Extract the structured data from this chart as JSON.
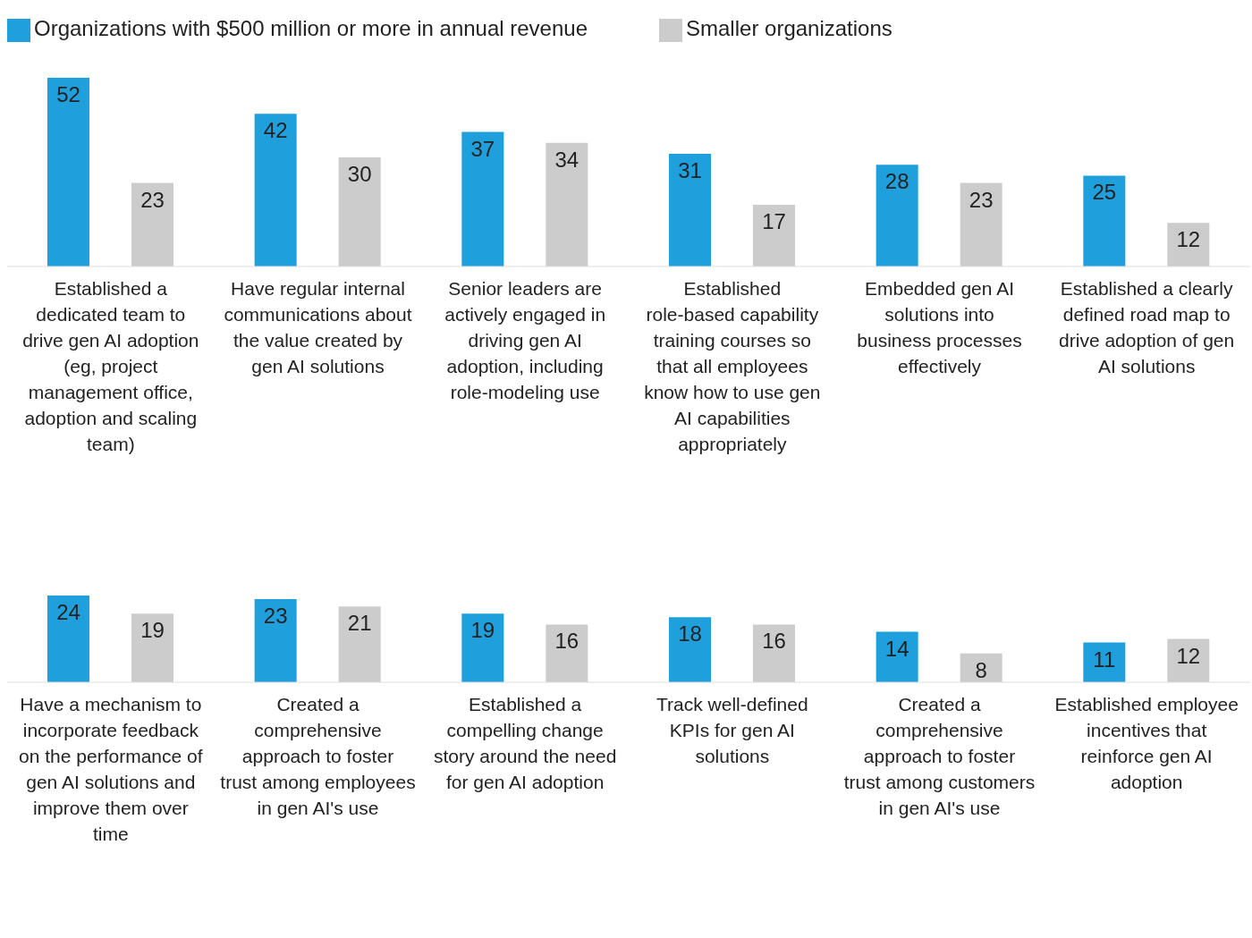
{
  "chart_data": [
    {
      "type": "bar",
      "categories": [
        "Established a dedicated team to drive gen AI adoption (eg, project management office, adoption and scaling team)",
        "Have regular internal communications about the value created by gen AI solutions",
        "Senior leaders are actively engaged in driving gen AI adoption, including role-modeling use",
        "Established role-based capability training courses so that all employees know how to use gen AI capabilities appropriately",
        "Embedded gen AI solutions into business processes effectively",
        "Established a clearly defined road map to drive adoption of gen AI solutions"
      ],
      "series": [
        {
          "name": "Organizations with $500 million or more in annual revenue",
          "color": "#1fa0dc",
          "values": [
            52,
            42,
            37,
            31,
            28,
            25
          ]
        },
        {
          "name": "Smaller organizations",
          "color": "#cccccc",
          "values": [
            23,
            30,
            34,
            17,
            23,
            12
          ]
        }
      ],
      "data_labels": true,
      "legend": "top left"
    },
    {
      "type": "bar",
      "categories": [
        "Have a mechanism to incorporate feedback on the performance of gen AI solutions and improve them over time",
        "Created a comprehensive approach to foster trust among employees in gen AI's use",
        "Established a compelling change story around the need for gen AI adoption",
        "Track well-defined KPIs for gen AI solutions",
        "Created a comprehensive approach to foster trust among customers in gen AI's use",
        "Established employee incentives that reinforce gen AI adoption"
      ],
      "series": [
        {
          "color": "#1fa0dc",
          "values": [
            24,
            23,
            19,
            18,
            14,
            11
          ]
        },
        {
          "color": "#cccccc",
          "values": [
            19,
            21,
            16,
            16,
            8,
            12
          ]
        }
      ],
      "data_labels": true
    }
  ]
}
